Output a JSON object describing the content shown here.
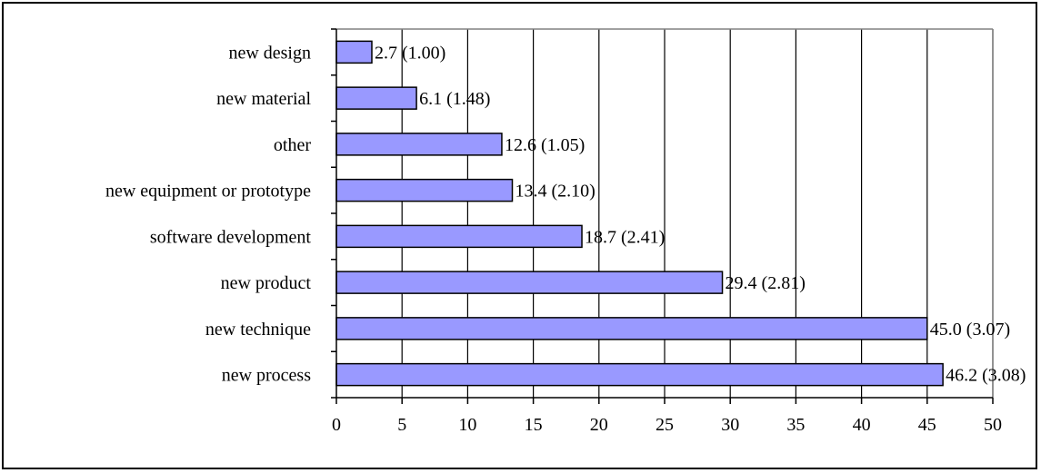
{
  "chart_data": {
    "type": "bar",
    "orientation": "horizontal",
    "title": "",
    "xlabel": "",
    "ylabel": "",
    "categories": [
      "new design",
      "new material",
      "other",
      "new equipment or prototype",
      "software development",
      "new product",
      "new technique",
      "new process"
    ],
    "values": [
      2.7,
      6.1,
      12.6,
      13.4,
      18.7,
      29.4,
      45.0,
      46.2
    ],
    "data_labels": [
      "2.7 (1.00)",
      "6.1 (1.48)",
      "12.6 (1.05)",
      "13.4 (2.10)",
      "18.7 (2.41)",
      "29.4 (2.81)",
      "45.0 (3.07)",
      "46.2 (3.08)"
    ],
    "xlim": [
      0,
      50
    ],
    "x_ticks": [
      0,
      5,
      10,
      15,
      20,
      25,
      30,
      35,
      40,
      45,
      50
    ],
    "x_tick_labels": [
      "0",
      "5",
      "10",
      "15",
      "20",
      "25",
      "30",
      "35",
      "40",
      "45",
      "50"
    ],
    "grid": "vertical",
    "legend": "none",
    "colors": {
      "bar_fill": "#9999ff",
      "bar_stroke": "#000000",
      "grid": "#000000",
      "plot_border": "#808080"
    }
  }
}
